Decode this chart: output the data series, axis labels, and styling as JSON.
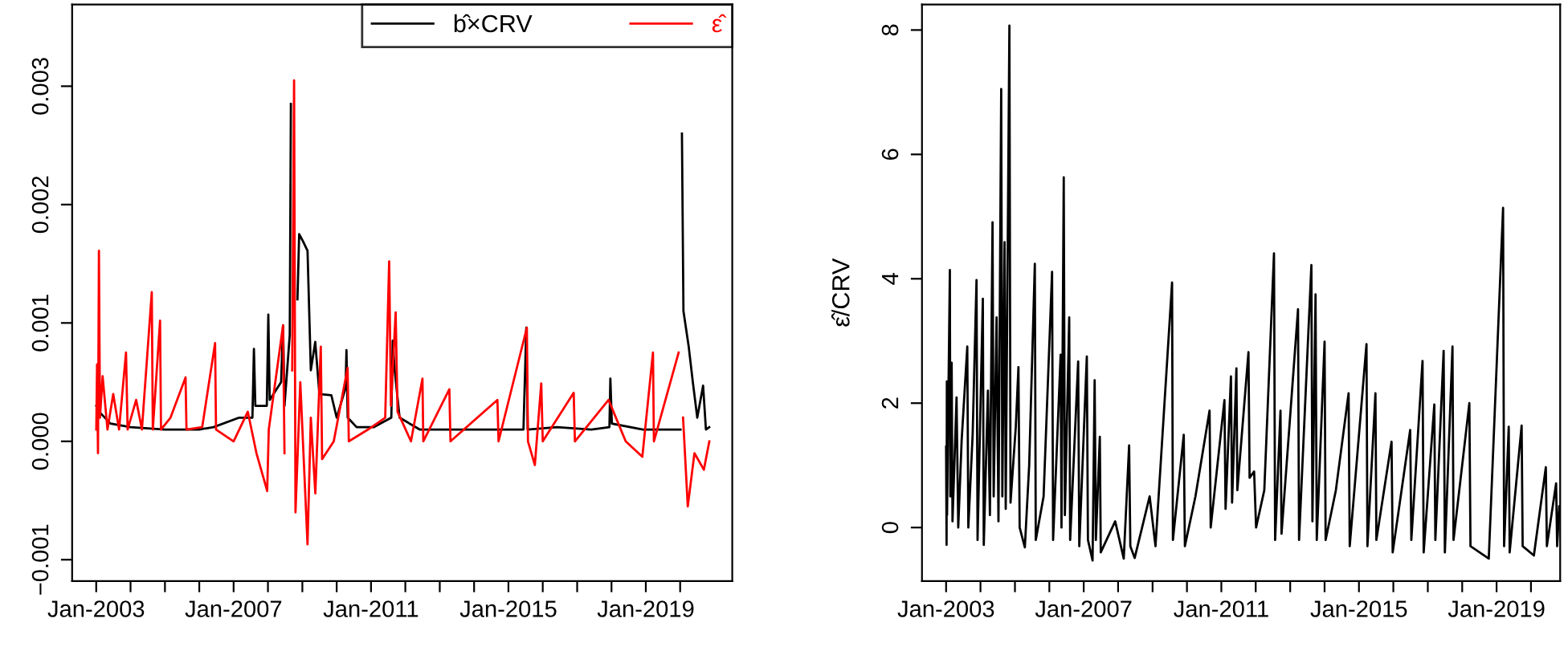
{
  "chart_data": [
    {
      "type": "line",
      "legend": "top right",
      "grid": false,
      "xlim": [
        "2002-04-20",
        "2021-07-08"
      ],
      "xticks": [
        {
          "value": "2003-01-01",
          "label": "Jan-2003"
        },
        {
          "value": "2004-01-01",
          "label": null
        },
        {
          "value": "2005-01-01",
          "label": null
        },
        {
          "value": "2006-01-01",
          "label": null
        },
        {
          "value": "2007-01-01",
          "label": "Jan-2007"
        },
        {
          "value": "2008-01-01",
          "label": null
        },
        {
          "value": "2009-01-01",
          "label": null
        },
        {
          "value": "2010-01-01",
          "label": null
        },
        {
          "value": "2011-01-01",
          "label": "Jan-2011"
        },
        {
          "value": "2012-01-01",
          "label": null
        },
        {
          "value": "2013-01-01",
          "label": null
        },
        {
          "value": "2014-01-01",
          "label": null
        },
        {
          "value": "2015-01-01",
          "label": "Jan-2015"
        },
        {
          "value": "2016-01-01",
          "label": null
        },
        {
          "value": "2017-01-01",
          "label": null
        },
        {
          "value": "2018-01-01",
          "label": null
        },
        {
          "value": "2019-01-01",
          "label": "Jan-2019"
        },
        {
          "value": "2020-01-01",
          "label": null
        }
      ],
      "ylim": [
        -0.00118,
        0.00369
      ],
      "yticks": [
        {
          "value": -0.001,
          "label": "−0.001"
        },
        {
          "value": 0,
          "label": "0.000"
        },
        {
          "value": 0.001,
          "label": "0.001"
        },
        {
          "value": 0.002,
          "label": "0.002"
        },
        {
          "value": 0.003,
          "label": "0.003"
        }
      ],
      "series": [
        {
          "name": "b̂×CRV",
          "color": "#000000",
          "x": [
            "2003-01-02",
            "2003-02-01",
            "2003-06-01",
            "2004-01-01",
            "2005-01-01",
            "2006-01-01",
            "2006-06-01",
            "2007-03-01",
            "2007-07-20",
            "2007-08-05",
            "2007-08-20",
            "2007-12-20",
            "2008-01-05",
            "2008-01-20",
            "2008-05-20",
            "2008-06-10",
            "2008-06-25",
            "2008-08-20",
            "2008-09-01",
            "2008-09-20",
            "2008-10-10",
            "2008-10-25",
            "2008-11-10",
            "2008-11-28",
            "2009-01-08",
            "2009-02-25",
            "2009-04-01",
            "2009-05-18",
            "2009-07-01",
            "2009-11-05",
            "2010-01-01",
            "2010-04-05",
            "2010-04-15",
            "2010-04-28",
            "2010-08-01",
            "2011-02-01",
            "2011-08-05",
            "2011-08-20",
            "2011-09-10",
            "2011-11-01",
            "2012-06-01",
            "2013-06-01",
            "2014-06-01",
            "2015-06-10",
            "2015-07-10",
            "2015-07-25",
            "2016-06-01",
            "2017-06-01",
            "2017-12-10",
            "2017-12-20",
            "2018-01-05",
            "2018-12-01",
            "2019-12-01",
            "2020-01-05",
            "2020-01-10",
            "2020-01-20",
            "2020-02-05",
            "2020-04-01",
            "2020-05-15",
            "2020-07-01",
            "2020-09-01",
            "2020-10-01",
            "2020-11-05"
          ],
          "values": [
            0.0003,
            0.00025,
            0.00015,
            0.00012,
            0.0001,
            0.0001,
            0.00012,
            0.0002,
            0.0002,
            0.00078,
            0.0003,
            0.0003,
            0.00107,
            0.00035,
            0.0005,
            0.00098,
            0.0003,
            0.0009,
            0.00285,
            null,
            null,
            null,
            0.0012,
            0.00175,
            0.00169,
            0.00161,
            0.0006,
            0.00084,
            0.0004,
            0.00039,
            0.0002,
            0.00045,
            0.00077,
            0.0002,
            0.00012,
            0.00012,
            0.0002,
            0.00085,
            0.0006,
            0.0002,
            0.0001,
            0.0001,
            0.0001,
            0.0001,
            0.00096,
            0.0001,
            0.00012,
            0.0001,
            0.00012,
            0.00053,
            0.00015,
            0.0001,
            0.0001,
            0.0001,
            null,
            0.0026,
            0.0011,
            0.0008,
            0.0005,
            0.0002,
            0.00047,
            0.0001,
            0.00012
          ]
        },
        {
          "name": "ε̂",
          "color": "#ff0000",
          "x": [
            "2003-01-02",
            "2003-01-10",
            "2003-01-20",
            "2003-01-30",
            "2003-02-10",
            "2003-03-10",
            "2003-05-01",
            "2003-07-01",
            "2003-09-01",
            "2003-11-14",
            "2003-12-01",
            "2004-03-01",
            "2004-05-01",
            "2004-08-14",
            "2004-08-25",
            "2004-11-10",
            "2004-11-20",
            "2005-03-01",
            "2005-08-08",
            "2005-08-18",
            "2006-02-01",
            "2006-06-18",
            "2006-06-28",
            "2007-01-01",
            "2007-06-01",
            "2007-09-01",
            "2007-12-24",
            "2008-01-10",
            "2008-06-10",
            "2008-06-25",
            "2008-08-25",
            "2008-09-15",
            "2008-10-05",
            "2008-10-20",
            "2008-12-10",
            "2009-02-25",
            "2009-04-01",
            "2009-05-19",
            "2009-07-16",
            "2009-07-30",
            "2009-12-01",
            "2010-04-27",
            "2010-05-10",
            "2010-12-01",
            "2011-06-01",
            "2011-07-13",
            "2011-08-01",
            "2011-09-20",
            "2011-10-10",
            "2012-03-01",
            "2012-07-01",
            "2012-07-10",
            "2013-04-13",
            "2013-04-25",
            "2014-09-06",
            "2014-09-18",
            "2015-07-16",
            "2015-07-28",
            "2015-10-09",
            "2015-12-16",
            "2016-01-01",
            "2016-11-25",
            "2016-12-08",
            "2017-12-01",
            "2018-06-01",
            "2018-11-25",
            "2019-03-18",
            "2019-03-28",
            "2019-12-16",
            "2020-01-08",
            "2020-02-01",
            "2020-03-22",
            "2020-06-01",
            "2020-09-09",
            "2020-11-06"
          ],
          "values": [
            0.0001,
            0.00065,
            -0.0001,
            0.00161,
            0.0002,
            0.00055,
            0.0001,
            0.0004,
            0.0001,
            0.00075,
            0.0001,
            0.00035,
            0.0001,
            0.00126,
            0.0001,
            0.00102,
            0.0001,
            0.0002,
            0.00054,
            0.0001,
            0.00012,
            0.00083,
            0.0001,
            0.0,
            0.00025,
            -0.0001,
            -0.00042,
            0.0001,
            0.00098,
            -0.0001,
            null,
            0.0006,
            0.00305,
            -0.0006,
            0.0005,
            -0.00087,
            0.0002,
            -0.00044,
            0.0008,
            -0.00015,
            0.0,
            0.00062,
            0.0,
            0.0001,
            0.0002,
            0.00152,
            0.0003,
            0.00109,
            0.00025,
            0.0,
            0.00053,
            0.0,
            0.00044,
            0.0,
            0.00035,
            0.0,
            0.00096,
            0.0,
            -0.0002,
            0.00049,
            0.0,
            0.00041,
            0.0,
            0.00035,
            0.0,
            -0.00013,
            0.00075,
            0.0,
            0.00075,
            null,
            0.0002,
            -0.00055,
            -0.0001,
            -0.00024,
            0.0
          ]
        }
      ]
    },
    {
      "type": "line",
      "grid": false,
      "ylabel": "ε̂/CRV",
      "xlim": [
        "2002-04-20",
        "2020-11-06"
      ],
      "xticks": [
        {
          "value": "2003-01-01",
          "label": "Jan-2003"
        },
        {
          "value": "2004-01-01",
          "label": null
        },
        {
          "value": "2005-01-01",
          "label": null
        },
        {
          "value": "2006-01-01",
          "label": null
        },
        {
          "value": "2007-01-01",
          "label": "Jan-2007"
        },
        {
          "value": "2008-01-01",
          "label": null
        },
        {
          "value": "2009-01-01",
          "label": null
        },
        {
          "value": "2010-01-01",
          "label": null
        },
        {
          "value": "2011-01-01",
          "label": "Jan-2011"
        },
        {
          "value": "2012-01-01",
          "label": null
        },
        {
          "value": "2013-01-01",
          "label": null
        },
        {
          "value": "2014-01-01",
          "label": null
        },
        {
          "value": "2015-01-01",
          "label": "Jan-2015"
        },
        {
          "value": "2016-01-01",
          "label": null
        },
        {
          "value": "2017-01-01",
          "label": null
        },
        {
          "value": "2018-01-01",
          "label": null
        },
        {
          "value": "2019-01-01",
          "label": "Jan-2019"
        },
        {
          "value": "2020-01-01",
          "label": null
        }
      ],
      "ylim": [
        -0.86,
        8.41
      ],
      "yticks": [
        0,
        2,
        4,
        6,
        8
      ],
      "series": [
        {
          "color": "#000000",
          "x": [
            "2003-01-01",
            "2003-01-06",
            "2003-01-09",
            "2003-01-11",
            "2003-02-10",
            "2003-02-15",
            "2003-03-01",
            "2003-03-10",
            "2003-04-22",
            "2003-05-10",
            "2003-06-15",
            "2003-08-14",
            "2003-08-25",
            "2003-10-10",
            "2003-11-20",
            "2003-12-01",
            "2004-01-26",
            "2004-02-05",
            "2004-03-20",
            "2004-04-10",
            "2004-05-08",
            "2004-05-20",
            "2004-06-20",
            "2004-07-10",
            "2004-08-08",
            "2004-08-20",
            "2004-09-13",
            "2004-09-25",
            "2004-11-03",
            "2004-11-15",
            "2005-01-10",
            "2005-02-07",
            "2005-02-20",
            "2005-04-16",
            "2005-06-01",
            "2005-07-31",
            "2005-08-10",
            "2005-11-01",
            "2006-01-30",
            "2006-02-10",
            "2006-05-01",
            "2006-05-10",
            "2006-06-03",
            "2006-06-15",
            "2006-07-31",
            "2006-08-10",
            "2006-11-03",
            "2006-11-15",
            "2007-02-03",
            "2007-02-15",
            "2007-04-05",
            "2007-04-27",
            "2007-05-10",
            "2007-06-21",
            "2007-07-01",
            "2007-12-01",
            "2008-03-01",
            "2008-04-27",
            "2008-05-10",
            "2008-06-25",
            "2008-12-01",
            "2009-02-01",
            "2009-07-27",
            "2009-08-05",
            "2009-11-28",
            "2009-12-10",
            "2010-04-01",
            "2010-08-29",
            "2010-09-10",
            "2011-02-03",
            "2011-02-15",
            "2011-04-13",
            "2011-04-25",
            "2011-06-10",
            "2011-06-20",
            "2011-10-16",
            "2011-10-28",
            "2011-12-15",
            "2012-01-05",
            "2012-04-01",
            "2012-07-13",
            "2012-07-25",
            "2012-09-20",
            "2012-10-01",
            "2013-03-25",
            "2013-04-05",
            "2013-08-14",
            "2013-08-25",
            "2013-09-27",
            "2013-10-10",
            "2014-01-01",
            "2014-01-12",
            "2014-05-01",
            "2014-09-13",
            "2014-09-25",
            "2015-03-22",
            "2015-04-01",
            "2015-06-25",
            "2015-07-05",
            "2015-12-13",
            "2015-12-25",
            "2016-06-28",
            "2016-07-10",
            "2016-11-06",
            "2016-11-18",
            "2017-03-11",
            "2017-03-22",
            "2017-06-18",
            "2017-07-01",
            "2017-09-20",
            "2017-10-01",
            "2018-03-18",
            "2018-03-30",
            "2018-10-10",
            "2019-03-11",
            "2019-03-22",
            "2019-05-10",
            "2019-05-20",
            "2019-09-24",
            "2019-10-05",
            "2020-02-01",
            "2020-06-07",
            "2020-06-18",
            "2020-09-24",
            "2020-10-05",
            "2020-10-27"
          ],
          "values": [
            1.3,
            -0.28,
            2.35,
            0.2,
            4.14,
            0.5,
            2.65,
            0.1,
            2.09,
            0.0,
            1.4,
            2.91,
            0.0,
            1.5,
            3.98,
            -0.2,
            3.68,
            -0.28,
            2.2,
            0.2,
            4.91,
            0.5,
            3.38,
            0.1,
            7.05,
            0.5,
            4.59,
            0.3,
            8.07,
            0.4,
            1.62,
            2.58,
            0.0,
            -0.32,
            1.0,
            4.24,
            -0.2,
            0.5,
            4.11,
            -0.2,
            2.78,
            0.0,
            5.63,
            0.2,
            3.38,
            -0.2,
            2.67,
            -0.3,
            2.75,
            -0.2,
            -0.53,
            2.37,
            -0.2,
            1.46,
            -0.4,
            0.1,
            -0.5,
            1.32,
            -0.3,
            -0.49,
            0.5,
            -0.3,
            3.94,
            -0.2,
            1.49,
            -0.3,
            0.5,
            1.88,
            0.0,
            2.05,
            0.3,
            2.43,
            0.4,
            2.56,
            0.6,
            2.82,
            0.8,
            0.9,
            0.0,
            0.6,
            4.41,
            -0.2,
            1.88,
            -0.1,
            3.51,
            -0.2,
            4.22,
            0.1,
            3.75,
            -0.2,
            2.99,
            -0.2,
            0.6,
            2.16,
            -0.3,
            2.95,
            -0.3,
            2.16,
            -0.2,
            1.38,
            -0.4,
            1.57,
            -0.2,
            2.68,
            -0.4,
            1.98,
            -0.2,
            2.84,
            -0.4,
            2.91,
            -0.2,
            2.0,
            -0.3,
            -0.5,
            5.14,
            -0.3,
            1.62,
            -0.4,
            1.64,
            -0.3,
            -0.45,
            0.97,
            -0.3,
            0.71,
            -0.3,
            0.34
          ]
        }
      ]
    }
  ]
}
